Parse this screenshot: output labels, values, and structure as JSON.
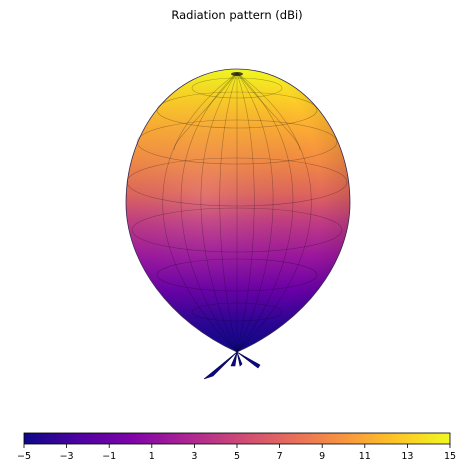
{
  "chart_data": {
    "type": "surface3d",
    "title": "Radiation pattern (dBi)",
    "colormap": "plasma",
    "colorbar": {
      "orientation": "horizontal",
      "placement": "bottom",
      "range": [
        -5,
        15
      ],
      "ticks": [
        -5,
        -3,
        -1,
        1,
        3,
        5,
        7,
        9,
        11,
        13,
        15
      ],
      "tick_labels": [
        "−5",
        "−3",
        "−1",
        "1",
        "3",
        "5",
        "7",
        "9",
        "11",
        "13",
        "15"
      ]
    },
    "gain_range_dBi": [
      -5,
      15
    ],
    "main_lobe_direction": "up",
    "back_lobes": 4,
    "grid": false
  }
}
